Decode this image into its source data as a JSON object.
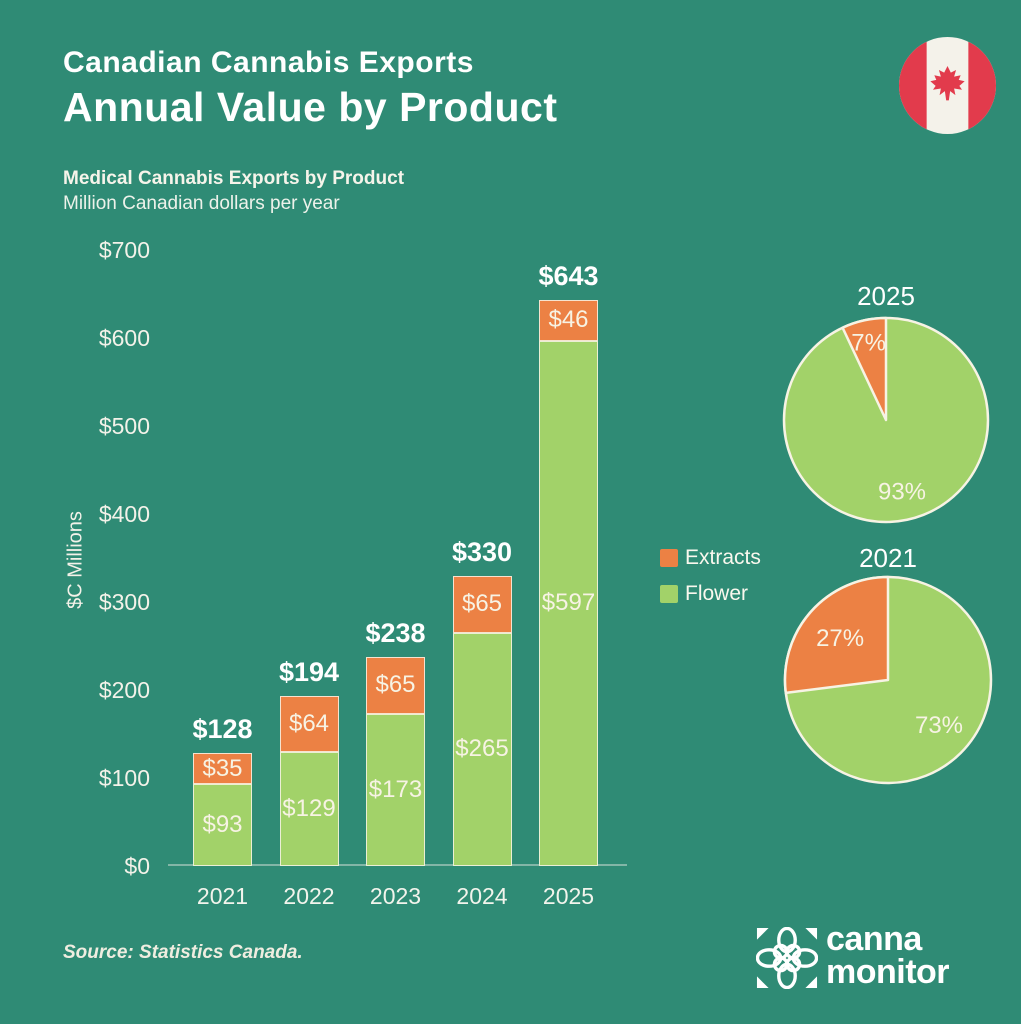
{
  "colors": {
    "background": "#2F8B75",
    "extracts_orange": "#EC8144",
    "flower_green": "#A2D269",
    "cream_text": "#F7F3E4",
    "white": "#FFFFFF",
    "flag_red": "#E23B4C"
  },
  "header": {
    "title_line1": "Canadian Cannabis Exports",
    "title_line2": "Annual Value by Product"
  },
  "subtitle": {
    "line1": "Medical Cannabis Exports by Product",
    "line2": "Million Canadian dollars per year"
  },
  "legend": {
    "items": [
      {
        "label": "Extracts",
        "color": "#EC8144"
      },
      {
        "label": "Flower",
        "color": "#A2D269"
      }
    ]
  },
  "chart_data": [
    {
      "type": "bar",
      "stacked": true,
      "title": "Medical Cannabis Exports by Product",
      "subtitle": "Million Canadian dollars per year",
      "ylabel": "$C Millions",
      "ylim": [
        0,
        700
      ],
      "ytick_step": 100,
      "ytick_labels": [
        "$0",
        "$100",
        "$200",
        "$300",
        "$400",
        "$500",
        "$600",
        "$700"
      ],
      "categories": [
        "2021",
        "2022",
        "2023",
        "2024",
        "2025"
      ],
      "series": [
        {
          "name": "Flower",
          "color": "#A2D269",
          "values": [
            93,
            129,
            173,
            265,
            597
          ],
          "labels": [
            "$93",
            "$129",
            "$173",
            "$265",
            "$597"
          ]
        },
        {
          "name": "Extracts",
          "color": "#EC8144",
          "values": [
            35,
            64,
            65,
            65,
            46
          ],
          "labels": [
            "$35",
            "$64",
            "$65",
            "$65",
            "$46"
          ]
        }
      ],
      "totals": [
        128,
        194,
        238,
        330,
        643
      ],
      "total_labels": [
        "$128",
        "$194",
        "$238",
        "$330",
        "$643"
      ],
      "legend_position": "right",
      "grid": false
    },
    {
      "type": "pie",
      "title": "2025",
      "slices": [
        {
          "name": "Extracts",
          "value": 7,
          "label": "7%",
          "color": "#EC8144"
        },
        {
          "name": "Flower",
          "value": 93,
          "label": "93%",
          "color": "#A2D269"
        }
      ]
    },
    {
      "type": "pie",
      "title": "2021",
      "slices": [
        {
          "name": "Extracts",
          "value": 27,
          "label": "27%",
          "color": "#EC8144"
        },
        {
          "name": "Flower",
          "value": 73,
          "label": "73%",
          "color": "#A2D269"
        }
      ]
    }
  ],
  "footer": {
    "source": "Source: Statistics Canada.",
    "logo_text_line1": "canna",
    "logo_text_line2": "monitor"
  }
}
